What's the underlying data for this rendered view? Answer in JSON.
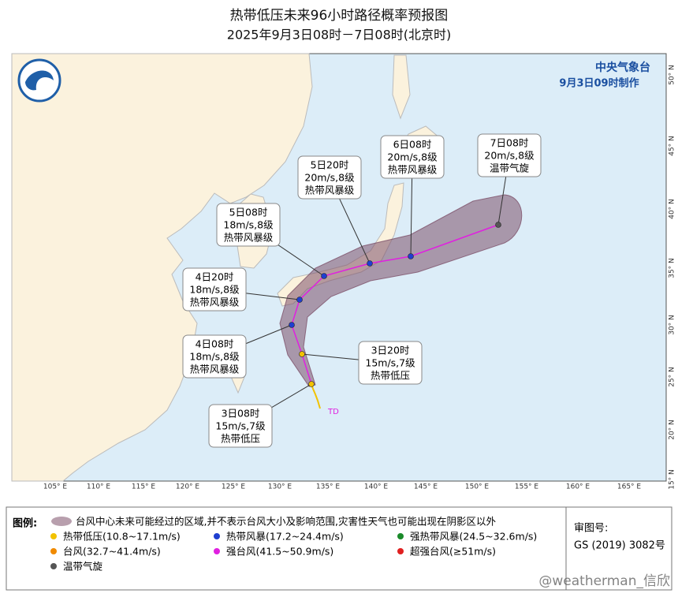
{
  "header": {
    "title": "热带低压未来96小时路径概率预报图",
    "subtitle": "2025年9月3日08时－7日08时(北京时)"
  },
  "agency": {
    "name": "中央气象台",
    "issued": "9月3日09时制作"
  },
  "forecasts": [
    {
      "time": "3日08时",
      "wind": "15m/s,7级",
      "level": "热带低压"
    },
    {
      "time": "3日20时",
      "wind": "15m/s,7级",
      "level": "热带低压"
    },
    {
      "time": "4日08时",
      "wind": "18m/s,8级",
      "level": "热带风暴级"
    },
    {
      "time": "4日20时",
      "wind": "18m/s,8级",
      "level": "热带风暴级"
    },
    {
      "time": "5日08时",
      "wind": "18m/s,8级",
      "level": "热带风暴级"
    },
    {
      "time": "5日20时",
      "wind": "20m/s,8级",
      "level": "热带风暴级"
    },
    {
      "time": "6日08时",
      "wind": "20m/s,8级",
      "level": "热带风暴级"
    },
    {
      "time": "7日08时",
      "wind": "20m/s,8级",
      "level": "温带气旋"
    }
  ],
  "storm_label": "TD",
  "longitude_labels": [
    "105° E",
    "110° E",
    "115° E",
    "120° E",
    "125° E",
    "130° E",
    "135° E",
    "140° E",
    "145° E",
    "150° E",
    "155° E",
    "160° E",
    "165° E"
  ],
  "latitude_labels": [
    "50° N",
    "45° N",
    "40° N",
    "35° N",
    "30° N",
    "25° N",
    "20° N",
    "15° N"
  ],
  "legend": {
    "title": "图例:",
    "cone": "台风中心未来可能经过的区域,并不表示台风大小及影响范围,灾害性天气也可能出现在阴影区以外",
    "items": [
      "热带低压(10.8~17.1m/s)",
      "热带风暴(17.2~24.4m/s)",
      "强热带风暴(24.5~32.6m/s)",
      "台风(32.7~41.4m/s)",
      "强台风(41.5~50.9m/s)",
      "超强台风(≥51m/s)",
      "温带气旋"
    ]
  },
  "approval": {
    "label": "审图号:",
    "number": "GS (2019) 3082号"
  },
  "watermark": "@weatherman_信欣"
}
